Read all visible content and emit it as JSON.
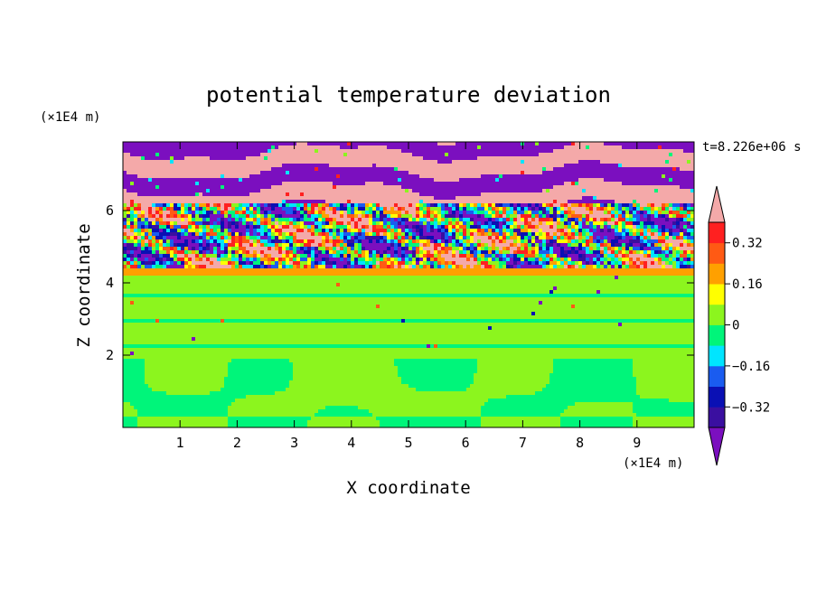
{
  "chart_data": {
    "type": "heatmap",
    "title": "potential temperature deviation",
    "xlabel": "X coordinate",
    "ylabel": "Z coordinate",
    "x_unit": "(×1E4 m)",
    "y_unit": "(×1E4 m)",
    "time_label": "t=8.226e+06 s",
    "xlim": [
      0,
      10
    ],
    "ylim": [
      0,
      7.9
    ],
    "x_ticks": [
      1,
      2,
      3,
      4,
      5,
      6,
      7,
      8,
      9
    ],
    "y_ticks": [
      2,
      4,
      6
    ],
    "colorbar": {
      "levels": [
        -0.4,
        -0.32,
        -0.24,
        -0.16,
        -0.08,
        0,
        0.08,
        0.16,
        0.24,
        0.32,
        0.4
      ],
      "tick_values": [
        0.32,
        0.16,
        0,
        -0.16,
        -0.32
      ],
      "tick_labels": [
        "0.32",
        "0.16",
        "0",
        "−0.16",
        "−0.32"
      ],
      "colors": [
        "#7b0fbf",
        "#3a0fa0",
        "#0a10b4",
        "#1a5cf0",
        "#00e5ff",
        "#00f57a",
        "#8cf51e",
        "#ffff00",
        "#ffa000",
        "#ff5a14",
        "#ff2020",
        "#f4a9a9"
      ],
      "extend": "both"
    },
    "fields": [
      {
        "z_range": [
          0,
          1.9
        ],
        "description_value": "mostly 0 to -0.08 with rolls of 0 to 0.08"
      },
      {
        "z_range": [
          1.9,
          4.2
        ],
        "description_value": "0 to 0.08 layered"
      },
      {
        "z_range": [
          4.2,
          4.4
        ],
        "description_value": "0.24"
      },
      {
        "z_range": [
          4.4,
          6.2
        ],
        "description_value": "mixed turbulent -0.4 to 0.4"
      },
      {
        "z_range": [
          6.2,
          7.9
        ],
        "description_value": "alternating layers below -0.4 and above 0.4"
      }
    ]
  }
}
